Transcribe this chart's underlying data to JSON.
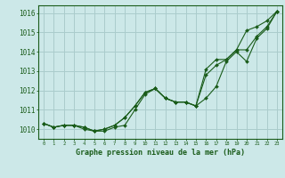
{
  "x": [
    0,
    1,
    2,
    3,
    4,
    5,
    6,
    7,
    8,
    9,
    10,
    11,
    12,
    13,
    14,
    15,
    16,
    17,
    18,
    19,
    20,
    21,
    22,
    23
  ],
  "line1": [
    1010.3,
    1010.1,
    1010.2,
    1010.2,
    1010.1,
    1009.9,
    1009.9,
    1010.1,
    1010.2,
    1011.0,
    1011.8,
    1012.1,
    1011.6,
    1011.4,
    1011.4,
    1011.2,
    1011.6,
    1012.2,
    1013.5,
    1014.0,
    1013.5,
    1014.7,
    1015.2,
    1016.1
  ],
  "line2": [
    1010.3,
    1010.1,
    1010.2,
    1010.2,
    1010.1,
    1009.9,
    1010.0,
    1010.2,
    1010.6,
    1011.2,
    1011.9,
    1012.1,
    1011.6,
    1011.4,
    1011.4,
    1011.2,
    1012.8,
    1013.3,
    1013.6,
    1014.1,
    1014.1,
    1014.8,
    1015.3,
    1016.1
  ],
  "line3": [
    1010.3,
    1010.1,
    1010.2,
    1010.2,
    1010.0,
    1009.9,
    1010.0,
    1010.2,
    1010.6,
    1011.2,
    1011.9,
    1012.1,
    1011.6,
    1011.4,
    1011.4,
    1011.2,
    1013.1,
    1013.6,
    1013.6,
    1014.1,
    1015.1,
    1015.3,
    1015.6,
    1016.1
  ],
  "bg_color": "#cce8e8",
  "grid_color": "#aacccc",
  "line_color": "#1a5c1a",
  "ylabel_values": [
    1010,
    1011,
    1012,
    1013,
    1014,
    1015,
    1016
  ],
  "xlabel": "Graphe pression niveau de la mer (hPa)",
  "ylim": [
    1009.5,
    1016.4
  ],
  "xlim": [
    -0.5,
    23.5
  ]
}
